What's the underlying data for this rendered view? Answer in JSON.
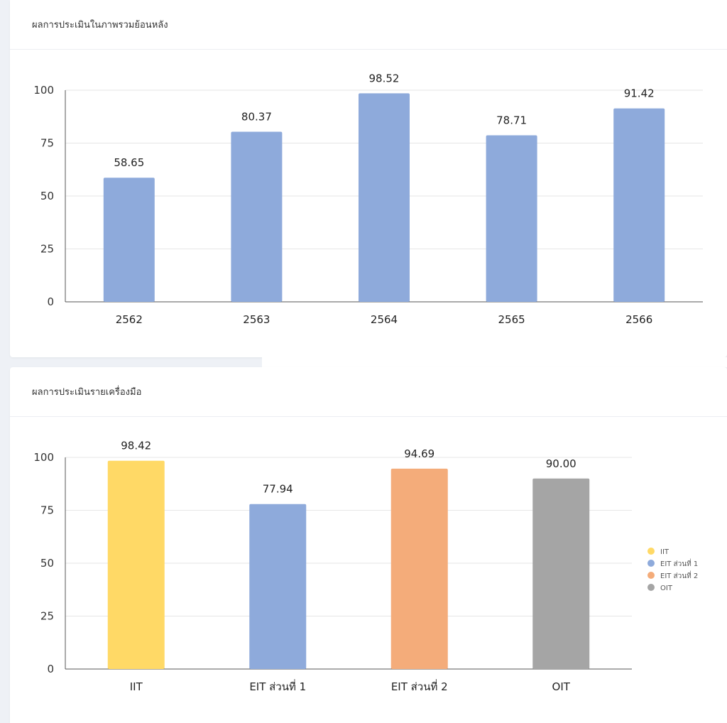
{
  "cards": [
    {
      "title": "ผลการประเมินในภาพรวมย้อนหลัง"
    },
    {
      "title": "ผลการประเมินรายเครื่องมือ"
    }
  ],
  "chart_data": [
    {
      "type": "bar",
      "title": "ผลการประเมินในภาพรวมย้อนหลัง",
      "categories": [
        "2562",
        "2563",
        "2564",
        "2565",
        "2566"
      ],
      "values": [
        58.65,
        80.37,
        98.52,
        78.71,
        91.42
      ],
      "value_labels": [
        "58.65",
        "80.37",
        "98.52",
        "78.71",
        "91.42"
      ],
      "colors": [
        "#8eaadb",
        "#8eaadb",
        "#8eaadb",
        "#8eaadb",
        "#8eaadb"
      ],
      "ylim": [
        0,
        100
      ],
      "yticks": [
        "0",
        "25",
        "50",
        "75",
        "100"
      ],
      "grid": true,
      "legend": null
    },
    {
      "type": "bar",
      "title": "ผลการประเมินรายเครื่องมือ",
      "categories": [
        "IIT",
        "EIT ส่วนที่ 1",
        "EIT ส่วนที่ 2",
        "OIT"
      ],
      "values": [
        98.42,
        77.94,
        94.69,
        90.0
      ],
      "value_labels": [
        "98.42",
        "77.94",
        "94.69",
        "90.00"
      ],
      "colors": [
        "#ffd966",
        "#8eaadb",
        "#f4ac7a",
        "#a5a5a5"
      ],
      "ylim": [
        0,
        100
      ],
      "yticks": [
        "0",
        "25",
        "50",
        "75",
        "100"
      ],
      "grid": true,
      "legend": {
        "placement": "right",
        "entries": [
          "IIT",
          "EIT ส่วนที่ 1",
          "EIT ส่วนที่ 2",
          "OIT"
        ]
      }
    }
  ]
}
